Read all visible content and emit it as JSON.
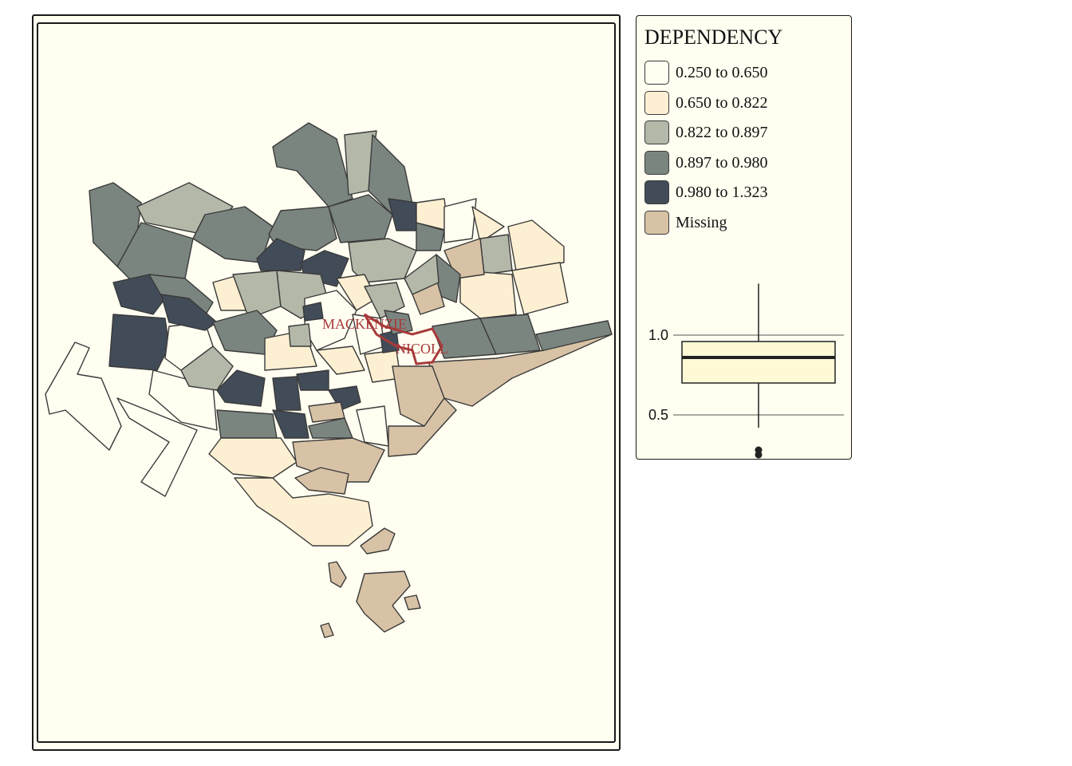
{
  "legend": {
    "title": "DEPENDENCY",
    "items": [
      {
        "label": "0.250 to 0.650",
        "color": "#fffef0"
      },
      {
        "label": "0.650 to 0.822",
        "color": "#fdf0d2"
      },
      {
        "label": "0.822 to 0.897",
        "color": "#b4b8a8"
      },
      {
        "label": "0.897 to 0.980",
        "color": "#7b8580"
      },
      {
        "label": "0.980 to 1.323",
        "color": "#424c58"
      },
      {
        "label": "Missing",
        "color": "#d8c2a6"
      }
    ]
  },
  "map": {
    "highlight_labels": [
      "MACKENZIE",
      "NICOLL"
    ],
    "highlight_color": "#a83a3a",
    "background": "#fffef0"
  },
  "chart_data": {
    "type": "boxplot",
    "title": "",
    "ylabel": "",
    "yticks": [
      1.0,
      0.5
    ],
    "ytick_labels": [
      "1.0",
      "0.5"
    ],
    "ylim": [
      0.2,
      1.5
    ],
    "box": {
      "whisker_high": 1.323,
      "q3": 0.96,
      "median": 0.86,
      "q1": 0.7,
      "whisker_low": 0.42,
      "outliers": [
        0.28,
        0.25
      ]
    },
    "fill": "#fff9d6"
  }
}
